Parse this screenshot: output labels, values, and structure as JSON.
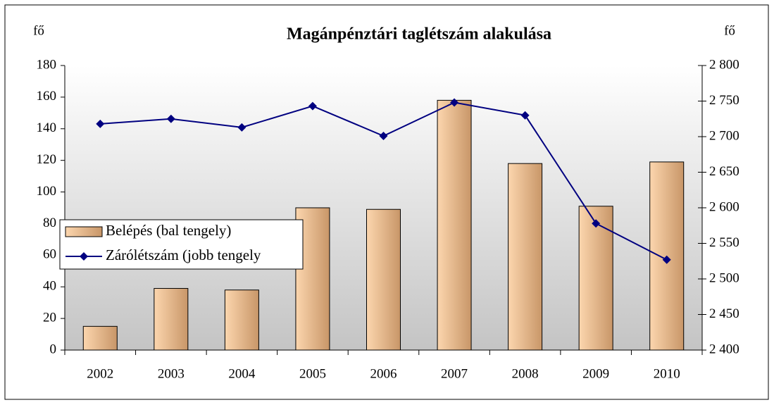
{
  "chart_data": {
    "type": "bar_line",
    "title": "Magánpénztári taglétszám alakulása",
    "y_label": "fő",
    "y2_label": "fő",
    "categories": [
      "2002",
      "2003",
      "2004",
      "2005",
      "2006",
      "2007",
      "2008",
      "2009",
      "2010"
    ],
    "series": [
      {
        "name": "Belépés (bal tengely)",
        "color": "#e8b384",
        "type": "bar",
        "values": [
          15,
          39,
          38,
          90,
          89,
          158,
          118,
          91,
          119
        ]
      },
      {
        "name": "Zárólétszám (jobb tengely",
        "color": "#000080",
        "type": "line",
        "axis": "y2",
        "values": [
          2718,
          2725,
          2713,
          2743,
          2701,
          2748,
          2730,
          2578,
          2527
        ]
      }
    ],
    "ylim": [
      0,
      180
    ],
    "yticks": [
      0,
      20,
      40,
      60,
      80,
      100,
      120,
      140,
      160,
      180
    ],
    "y2lim": [
      2400,
      2800
    ],
    "y2ticks": [
      {
        "value": 2400,
        "label": "2 400"
      },
      {
        "value": 2450,
        "label": "2 450"
      },
      {
        "value": 2500,
        "label": "2 500"
      },
      {
        "value": 2550,
        "label": "2 550"
      },
      {
        "value": 2600,
        "label": "2 600"
      },
      {
        "value": 2650,
        "label": "2 650"
      },
      {
        "value": 2700,
        "label": "2 700"
      },
      {
        "value": 2750,
        "label": "2 750"
      },
      {
        "value": 2800,
        "label": "2 800"
      }
    ],
    "legend": "left"
  }
}
